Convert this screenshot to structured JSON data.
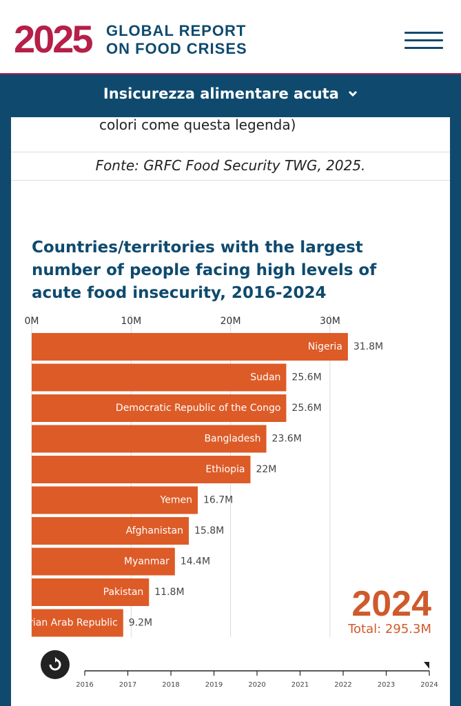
{
  "header": {
    "logo_year": "2025",
    "logo_line1": "GLOBAL REPORT",
    "logo_line2": "ON FOOD CRISES",
    "menu_icon": "hamburger-menu-icon"
  },
  "nav": {
    "section_label": "Insicurezza alimentare acuta",
    "chevron": "⌄"
  },
  "legend_tail": "colori come questa legenda)",
  "source": "Fonte: GRFC Food Security TWG, 2025.",
  "chart_title": "Countries/territories with the largest number of people facing high levels of acute food insecurity, 2016-2024",
  "year_display": "2024",
  "total_display": "Total: 295.3M",
  "colors": {
    "brand_red": "#b51f48",
    "navy": "#0f4a6e",
    "bar": "#dd5b27",
    "year": "#cf5a2b"
  },
  "chart_data": {
    "type": "bar",
    "orientation": "horizontal",
    "title": "Countries/territories with the largest number of people facing high levels of acute food insecurity, 2016-2024",
    "x_ticks": [
      {
        "value": 0,
        "label": "0M"
      },
      {
        "value": 10,
        "label": "10M"
      },
      {
        "value": 20,
        "label": "20M"
      },
      {
        "value": 30,
        "label": "30M"
      }
    ],
    "xlim": [
      0,
      35
    ],
    "unit": "M",
    "grid": true,
    "categories": [
      "Nigeria",
      "Sudan",
      "Democratic Republic of the Congo",
      "Bangladesh",
      "Ethiopia",
      "Yemen",
      "Afghanistan",
      "Myanmar",
      "Pakistan",
      "Syrian Arab Republic"
    ],
    "values": [
      31.8,
      25.6,
      25.6,
      23.6,
      22,
      16.7,
      15.8,
      14.4,
      11.8,
      9.2
    ],
    "value_labels": [
      "31.8M",
      "25.6M",
      "25.6M",
      "23.6M",
      "22M",
      "16.7M",
      "15.8M",
      "14.4M",
      "11.8M",
      "9.2M"
    ],
    "year": "2024",
    "total": "Total: 295.3M",
    "timeline_years": [
      "2016",
      "2017",
      "2018",
      "2019",
      "2020",
      "2021",
      "2022",
      "2023",
      "2024"
    ],
    "timeline_selected": "2024"
  }
}
